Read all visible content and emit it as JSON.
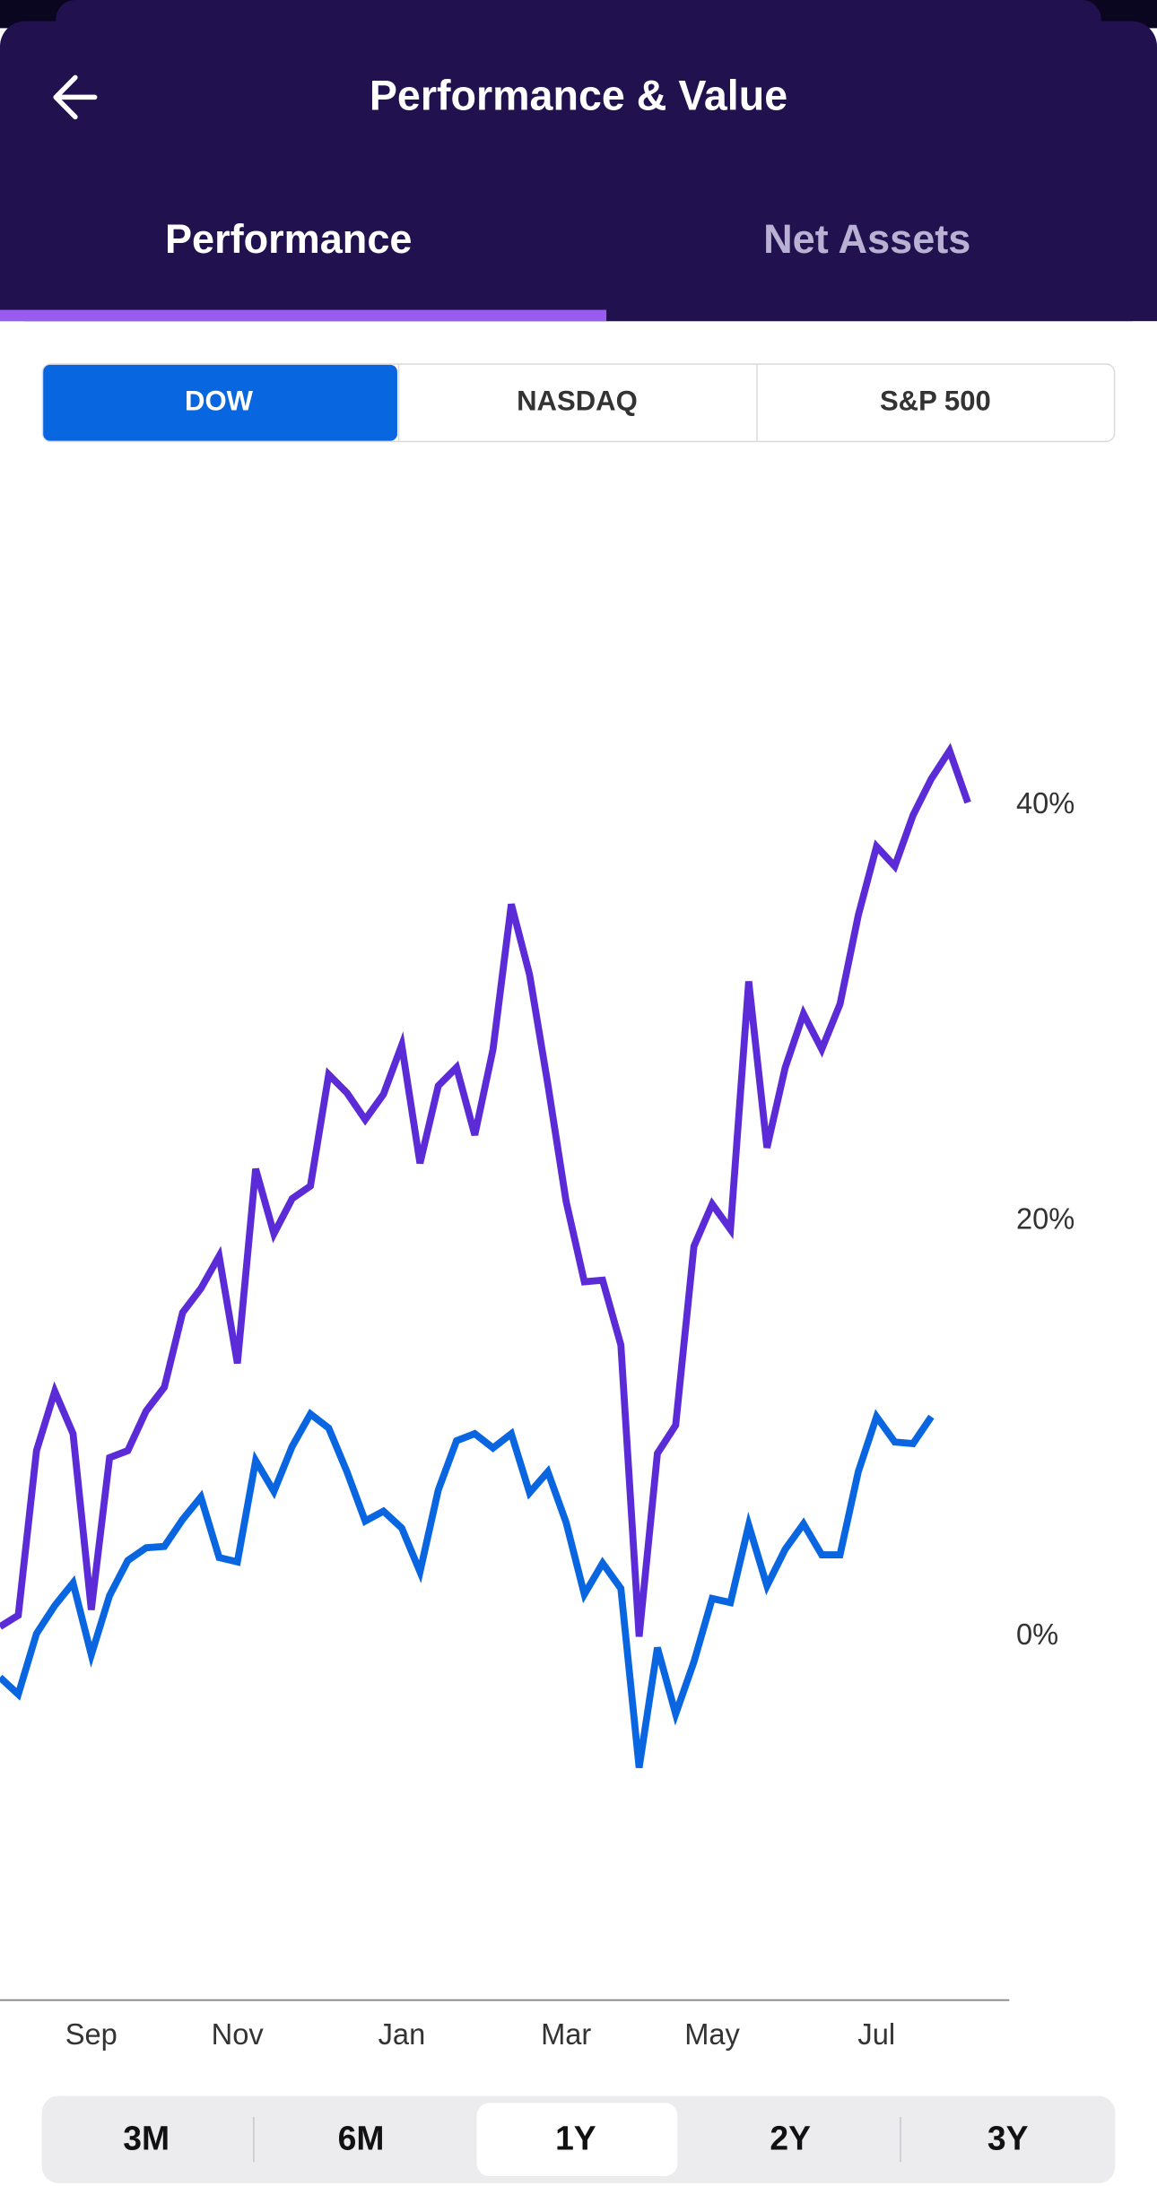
{
  "header": {
    "title": "Performance & Value"
  },
  "tabs": [
    "Performance",
    "Net Assets"
  ],
  "index_buttons": [
    "DOW",
    "NASDAQ",
    "S&P 500"
  ],
  "period_buttons": [
    "3M",
    "6M",
    "1Y",
    "2Y",
    "3Y"
  ],
  "chart_data": {
    "type": "line",
    "categories": [
      null,
      null,
      null,
      null,
      null,
      "Sep",
      null,
      null,
      null,
      null,
      null,
      null,
      null,
      "Nov",
      null,
      null,
      null,
      null,
      null,
      null,
      null,
      null,
      "Jan",
      null,
      null,
      null,
      null,
      null,
      null,
      null,
      null,
      "Mar",
      null,
      null,
      null,
      null,
      null,
      null,
      null,
      "May",
      null,
      null,
      null,
      null,
      null,
      null,
      null,
      null,
      "Jul",
      null,
      null,
      null,
      null,
      null
    ],
    "series": [
      {
        "color": "#5a2bd6",
        "values": [
          0.47,
          1.02,
          8.95,
          11.8,
          9.76,
          1.29,
          8.61,
          8.95,
          10.85,
          12.0,
          15.59,
          16.75,
          18.31,
          13.15,
          22.51,
          19.39,
          21.08,
          21.69,
          27.05,
          26.17,
          24.88,
          26.1,
          28.47,
          22.78,
          26.51,
          27.39,
          24.14,
          28.27,
          35.25,
          31.86,
          26.58,
          20.95,
          17.08,
          17.15,
          14.03,
          0,
          8.81,
          10.17,
          18.78,
          20.81,
          19.59,
          31.53,
          23.53,
          27.39,
          29.97,
          28.27,
          30.44,
          34.71,
          38.03,
          37.08,
          39.53,
          41.29,
          42.64,
          40.14
        ]
      },
      {
        "color": "#0a66e0",
        "values": [
          -1.97,
          -2.78,
          0.14,
          1.49,
          2.58,
          -0.88,
          1.97,
          3.66,
          4.27,
          4.34,
          5.63,
          6.71,
          3.8,
          3.59,
          8.47,
          6.98,
          9.15,
          10.71,
          10.03,
          7.93,
          5.56,
          6.03,
          5.22,
          3.12,
          7.05,
          9.42,
          9.76,
          9.08,
          9.76,
          6.92,
          7.93,
          5.49,
          2.03,
          3.53,
          2.31,
          -6.31,
          -0.54,
          -3.73,
          -1.22,
          1.83,
          1.63,
          5.36,
          2.44,
          4.2,
          5.42,
          3.93,
          3.93,
          7.93,
          10.58,
          9.36,
          9.29,
          10.58,
          null,
          null
        ]
      }
    ],
    "ylim": [
      -17.5,
      56.4
    ],
    "yticks": [
      {
        "value": 0,
        "label": "0%"
      },
      {
        "value": 20,
        "label": "20%"
      },
      {
        "value": 40,
        "label": "40%"
      }
    ],
    "grid": false
  }
}
